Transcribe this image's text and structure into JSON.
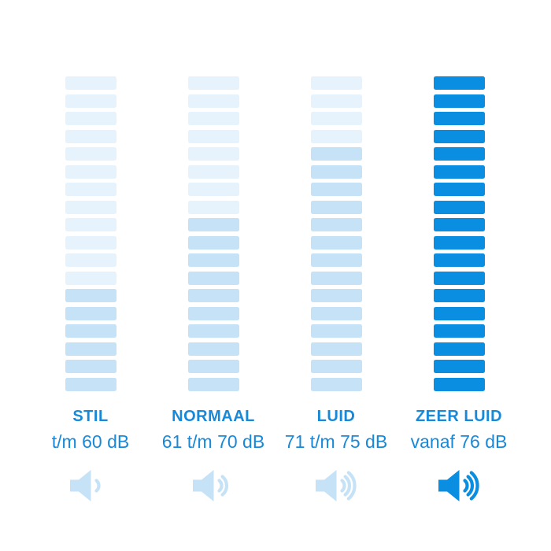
{
  "colors": {
    "background": "#ffffff",
    "bar_light": "#e7f3fc",
    "bar_medium": "#c6e2f7",
    "bar_dark": "#0a8ee1",
    "text": "#1789d8"
  },
  "chart_data": {
    "type": "bar",
    "unit": "dB",
    "bars_per_column": 18,
    "categories": [
      "STIL",
      "NORMAAL",
      "LUID",
      "ZEER LUID"
    ],
    "columns": [
      {
        "label": "STIL",
        "range": "t/m 60 dB",
        "db_max": 60,
        "bars": {
          "light": 12,
          "medium": 6,
          "dark": 0
        },
        "speaker": {
          "waves": 1,
          "color": "bar_medium"
        }
      },
      {
        "label": "NORMAAL",
        "range": "61 t/m 70 dB",
        "db_min": 61,
        "db_max": 70,
        "bars": {
          "light": 8,
          "medium": 10,
          "dark": 0
        },
        "speaker": {
          "waves": 2,
          "color": "bar_medium"
        }
      },
      {
        "label": "LUID",
        "range": "71 t/m 75 dB",
        "db_min": 71,
        "db_max": 75,
        "bars": {
          "light": 4,
          "medium": 14,
          "dark": 0
        },
        "speaker": {
          "waves": 3,
          "color": "bar_medium"
        }
      },
      {
        "label": "ZEER LUID",
        "range": "vanaf 76 dB",
        "db_min": 76,
        "bars": {
          "light": 0,
          "medium": 0,
          "dark": 18
        },
        "speaker": {
          "waves": 3,
          "color": "bar_dark"
        }
      }
    ]
  }
}
